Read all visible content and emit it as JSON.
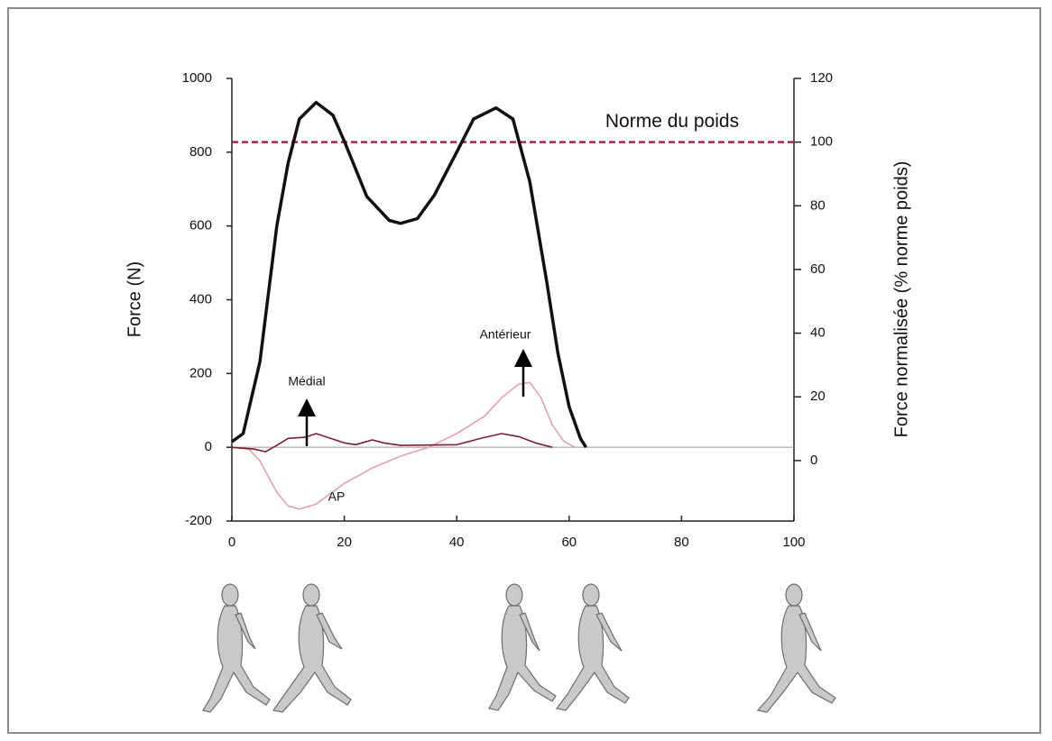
{
  "chart_data": {
    "type": "line",
    "xlim": [
      0,
      100
    ],
    "xticks": [
      0,
      20,
      40,
      60,
      80,
      100
    ],
    "ylim": [
      -200,
      1000
    ],
    "yticks": [
      -200,
      0,
      200,
      400,
      600,
      800,
      1000
    ],
    "y2lim": [
      -19,
      120
    ],
    "y2ticks": [
      0,
      20,
      40,
      60,
      80,
      100,
      120
    ],
    "ylabel": "Force (N)",
    "y2label": "Force normalisée (% norme poids)",
    "series": [
      {
        "color": "#111111",
        "x": [
          0,
          2,
          5,
          8,
          10,
          12,
          15,
          18,
          20,
          24,
          28,
          30,
          33,
          36,
          40,
          43,
          47,
          50,
          53,
          56,
          58,
          60,
          62,
          63
        ],
        "values": [
          15,
          37,
          232,
          600,
          770,
          890,
          935,
          900,
          830,
          680,
          615,
          607,
          620,
          683,
          800,
          890,
          920,
          890,
          720,
          450,
          256,
          110,
          24,
          0
        ]
      },
      {
        "color": "#e8a0ab",
        "x": [
          0,
          3,
          5,
          8,
          10,
          12,
          15,
          20,
          25,
          30,
          35,
          40,
          45,
          48,
          51,
          53,
          55,
          57,
          59,
          61
        ],
        "values": [
          0,
          -5,
          -37,
          -122,
          -159,
          -168,
          -154,
          -98,
          -56,
          -24,
          0,
          37,
          85,
          134,
          171,
          176,
          134,
          61,
          17,
          0
        ]
      },
      {
        "color": "#7a2030",
        "x": [
          0,
          4,
          6,
          8,
          10,
          13,
          15,
          17,
          20,
          22,
          25,
          27,
          30,
          40,
          45,
          48,
          51,
          54,
          57
        ],
        "values": [
          0,
          -5,
          -12,
          5,
          24,
          27,
          37,
          27,
          12,
          7,
          20,
          12,
          5,
          7,
          27,
          37,
          29,
          12,
          0
        ]
      }
    ],
    "reference_line": {
      "label": "Norme du poids",
      "value": 100,
      "axis": "y2",
      "color": "#b0204a"
    },
    "annotations": [
      "Médial",
      "Antérieur",
      "AP"
    ]
  }
}
